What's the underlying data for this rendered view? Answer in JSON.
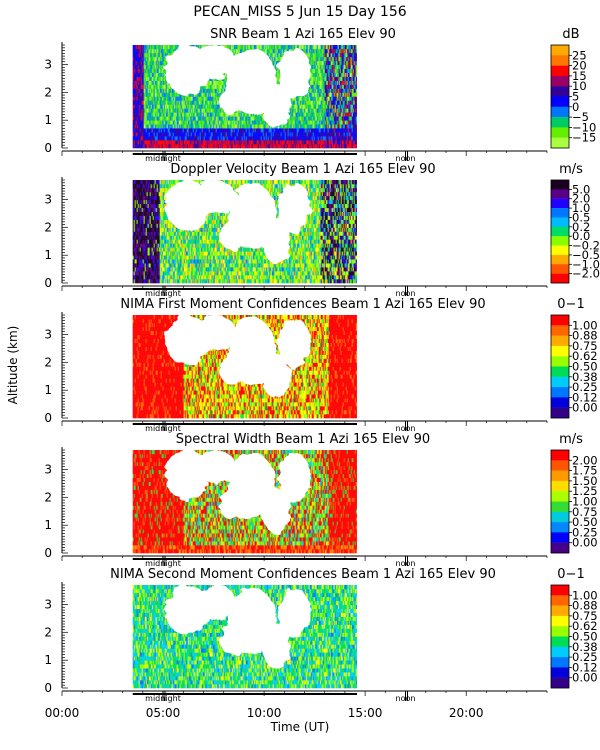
{
  "chart_data": {
    "type": "heatmap",
    "title": "PECAN_MISS    5 Jun 15 Day 156",
    "xlabel": "Time (UT)",
    "ylabel": "Altitude (km)",
    "xlim": [
      0,
      24
    ],
    "ylim": [
      0,
      3.7
    ],
    "x_ticks": [
      {
        "value": 0,
        "label": "00:00"
      },
      {
        "value": 5,
        "label": "05:00"
      },
      {
        "value": 10,
        "label": "10:00"
      },
      {
        "value": 15,
        "label": "15:00"
      },
      {
        "value": 20,
        "label": "20:00"
      }
    ],
    "y_ticks": [
      0,
      1,
      2,
      3
    ],
    "markers": [
      {
        "value": 5,
        "label": "midnight"
      },
      {
        "value": 17,
        "label": "noon"
      }
    ],
    "data_coverage_hours": [
      3.5,
      14.6
    ],
    "panels": [
      {
        "name": "snr",
        "title": "SNR Beam 1 Azi 165 Elev 90",
        "units": "dB",
        "colorbar_labels": [
          "25",
          "20",
          "15",
          "10",
          "5",
          "0",
          "−5",
          "−10",
          "−15"
        ],
        "colorbar_colors": [
          "#ffaa00",
          "#ff7700",
          "#ff0000",
          "#990066",
          "#330099",
          "#0000ff",
          "#0077ff",
          "#00cc66",
          "#66ee00",
          "#aaff44"
        ]
      },
      {
        "name": "doppler",
        "title": "Doppler Velocity Beam 1 Azi 165 Elev 90",
        "units": "m/s",
        "colorbar_labels": [
          "5.0",
          "2.0",
          "1.0",
          "0.5",
          "0.2",
          "0.0",
          "−0.2",
          "−0.5",
          "−1.0",
          "−2.0"
        ],
        "colorbar_colors": [
          "#1a0020",
          "#5a0088",
          "#2200ff",
          "#0077ff",
          "#00bbff",
          "#00dd66",
          "#88ff00",
          "#ffff00",
          "#ffaa00",
          "#ff5500",
          "#ff0000"
        ]
      },
      {
        "name": "first_moment_conf",
        "title": "NIMA First Moment Confidences Beam 1 Azi 165 Elev 90",
        "units": "0−1",
        "colorbar_labels": [
          "1.00",
          "0.88",
          "0.75",
          "0.62",
          "0.50",
          "0.38",
          "0.25",
          "0.12",
          "0.00"
        ],
        "colorbar_colors": [
          "#ff0000",
          "#ff6600",
          "#ffaa00",
          "#ffff00",
          "#99ff00",
          "#00dd55",
          "#00ccff",
          "#0077ff",
          "#0000dd",
          "#330088"
        ]
      },
      {
        "name": "spectral_width",
        "title": "Spectral Width Beam 1 Azi 165 Elev 90",
        "units": "m/s",
        "colorbar_labels": [
          "2.00",
          "1.75",
          "1.50",
          "1.25",
          "1.00",
          "0.75",
          "0.50",
          "0.25",
          "0.00"
        ],
        "colorbar_colors": [
          "#ff0000",
          "#ff5500",
          "#ff9900",
          "#ffdd00",
          "#aaff00",
          "#33dd33",
          "#00ccdd",
          "#0088ff",
          "#0000ff",
          "#440088"
        ]
      },
      {
        "name": "second_moment_conf",
        "title": "NIMA Second Moment Confidences Beam 1 Azi 165 Elev 90",
        "units": "0−1",
        "colorbar_labels": [
          "1.00",
          "0.88",
          "0.75",
          "0.62",
          "0.50",
          "0.38",
          "0.25",
          "0.12",
          "0.00"
        ],
        "colorbar_colors": [
          "#ff0000",
          "#ff6600",
          "#ffaa00",
          "#ffff00",
          "#99ff00",
          "#00dd55",
          "#00ccff",
          "#0077ff",
          "#0000dd",
          "#330088"
        ]
      }
    ]
  }
}
